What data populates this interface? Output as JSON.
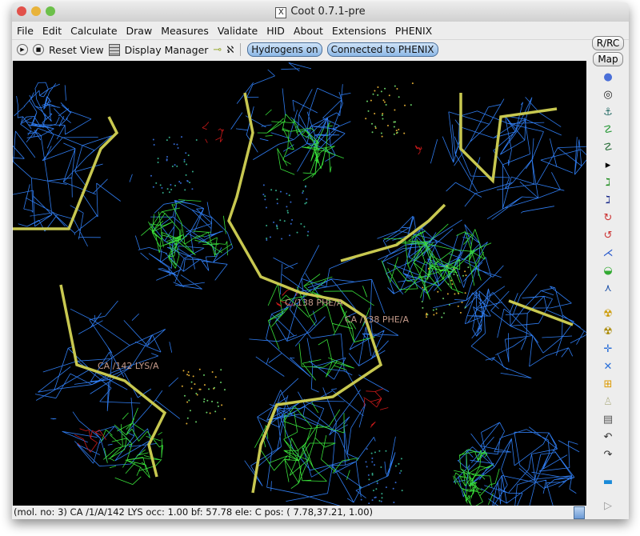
{
  "window": {
    "title": "Coot 0.7.1-pre"
  },
  "menu": [
    "File",
    "Edit",
    "Calculate",
    "Draw",
    "Measures",
    "Validate",
    "HID",
    "About",
    "Extensions",
    "PHENIX"
  ],
  "toolbar": {
    "reset_view": "Reset View",
    "display_manager": "Display Manager",
    "hydrogens": "Hydrogens on",
    "phenix": "Connected to PHENIX"
  },
  "side": {
    "rrc": "R/RC",
    "map": "Map",
    "icons": [
      "refine-icon",
      "regularize-icon",
      "rigid-body-icon",
      "rotamer-icon",
      "flip-icon",
      "arrow-icon",
      "real-space-icon",
      "backbone-icon",
      "rotate-icon",
      "torsion-icon",
      "pepflip-icon",
      "side-chain-icon",
      "mutate-icon",
      "radiation-icon",
      "radiation2-icon",
      "add-atom-icon",
      "delete-icon",
      "add-terminal-icon",
      "water-icon",
      "bin-icon",
      "undo-icon",
      "redo-icon",
      "flag-icon",
      "play-icon"
    ]
  },
  "labels": [
    "C /138 PHE/A",
    "CA /138 PHE/A",
    "CA /142 LYS/A"
  ],
  "status": "(mol. no: 3)  CA /1/A/142 LYS occ:  1.00 bf: 57.78 ele:  C pos: ( 7.78,37.21, 1.00)",
  "colors": {
    "map_blue": "#2f7cf0",
    "map_green": "#39e03a",
    "diff_red": "#cc1a1a",
    "backbone": "#c8c850"
  }
}
